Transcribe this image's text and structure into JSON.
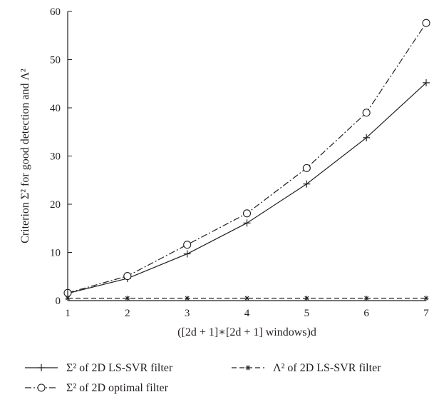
{
  "chart_data": {
    "type": "line",
    "title": "",
    "xlabel": "([2d + 1]∗[2d + 1] windows)d",
    "ylabel": "Criterion Σ² for good detection and Λ²",
    "xlim": [
      1,
      7
    ],
    "ylim": [
      0,
      60
    ],
    "x": [
      1,
      2,
      3,
      4,
      5,
      6,
      7
    ],
    "xticks": [
      "1",
      "2",
      "3",
      "4",
      "5",
      "6",
      "7"
    ],
    "yticks": [
      "0",
      "10",
      "20",
      "30",
      "40",
      "50",
      "60"
    ],
    "grid": false,
    "legend_position": "bottom",
    "series": [
      {
        "name": "Σ² of 2D LS-SVR filter",
        "line_style": "solid",
        "marker": "plus",
        "values": [
          1.5,
          4.6,
          9.7,
          16.1,
          24.2,
          33.8,
          45.2
        ]
      },
      {
        "name": "Λ² of 2D LS-SVR filter",
        "line_style": "dashed",
        "marker": "asterisk",
        "values": [
          0.5,
          0.5,
          0.5,
          0.5,
          0.5,
          0.5,
          0.5
        ]
      },
      {
        "name": "Σ² of 2D optimal filter",
        "line_style": "dashdot",
        "marker": "circle",
        "values": [
          1.6,
          5.1,
          11.6,
          18.1,
          27.5,
          39.0,
          57.6
        ]
      }
    ],
    "colors": {
      "ink": "#231f20"
    }
  }
}
